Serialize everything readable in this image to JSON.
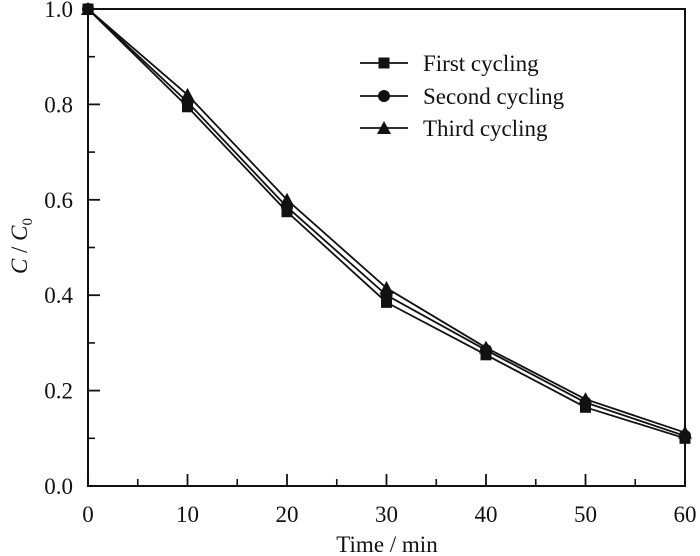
{
  "chart_data": {
    "type": "line",
    "xlabel": "Time / min",
    "ylabel": "C / C0",
    "ylabel_parts": {
      "first": "C",
      "separator": " / ",
      "second": "C",
      "subscript": "0"
    },
    "xlim": [
      0,
      60
    ],
    "ylim": [
      0.0,
      1.0
    ],
    "x": [
      0,
      10,
      20,
      30,
      40,
      50,
      60
    ],
    "x_ticks": [
      0,
      10,
      20,
      30,
      40,
      50,
      60
    ],
    "x_tick_labels": [
      "0",
      "10",
      "20",
      "30",
      "40",
      "50",
      "60"
    ],
    "y_ticks": [
      0.0,
      0.2,
      0.4,
      0.6,
      0.8,
      1.0
    ],
    "y_tick_labels": [
      "0.0",
      "0.2",
      "0.4",
      "0.6",
      "0.8",
      "1.0"
    ],
    "grid": false,
    "legend_position": "top-right",
    "series": [
      {
        "name": "First cycling",
        "marker": "square",
        "color": "#111111",
        "values": [
          1.0,
          0.795,
          0.575,
          0.385,
          0.275,
          0.165,
          0.1
        ]
      },
      {
        "name": "Second cycling",
        "marker": "circle",
        "color": "#111111",
        "values": [
          1.0,
          0.805,
          0.585,
          0.4,
          0.285,
          0.175,
          0.105
        ]
      },
      {
        "name": "Third cycling",
        "marker": "triangle",
        "color": "#111111",
        "values": [
          1.0,
          0.82,
          0.6,
          0.415,
          0.29,
          0.182,
          0.112
        ]
      }
    ]
  }
}
